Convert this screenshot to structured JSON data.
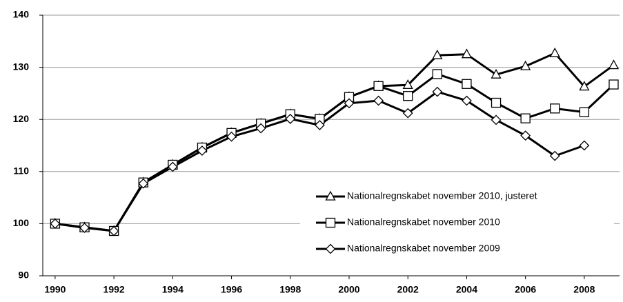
{
  "chart_data": {
    "type": "line",
    "x": [
      1990,
      1991,
      1992,
      1993,
      1994,
      1995,
      1996,
      1997,
      1998,
      1999,
      2000,
      2001,
      2002,
      2003,
      2004,
      2005,
      2006,
      2007,
      2008,
      2009
    ],
    "series": [
      {
        "name": "Nationalregnskabet november 2010, justeret",
        "color": "#000000",
        "marker": "triangle",
        "values": [
          100,
          99.3,
          98.6,
          107.9,
          111.3,
          114.6,
          117.4,
          119.2,
          121.0,
          120.1,
          124.3,
          126.4,
          126.6,
          132.3,
          132.5,
          128.6,
          130.2,
          132.7,
          126.3,
          130.4
        ]
      },
      {
        "name": "Nationalregnskabet november 2010",
        "color": "#000000",
        "marker": "square",
        "values": [
          100,
          99.3,
          98.6,
          107.9,
          111.3,
          114.6,
          117.4,
          119.2,
          121.0,
          120.1,
          124.3,
          126.4,
          124.5,
          128.7,
          126.8,
          123.2,
          120.2,
          122.1,
          121.4,
          126.7
        ]
      },
      {
        "name": "Nationalregnskabet november 2009",
        "color": "#000000",
        "marker": "diamond",
        "values": [
          100,
          99.2,
          98.6,
          107.7,
          110.9,
          114.0,
          116.7,
          118.3,
          120.1,
          118.9,
          123.1,
          123.6,
          121.2,
          125.3,
          123.6,
          119.9,
          116.9,
          113.0,
          115.0,
          null
        ]
      }
    ],
    "xlim": [
      1989.58,
      2009.2
    ],
    "xticks": [
      1990,
      1992,
      1994,
      1996,
      1998,
      2000,
      2002,
      2004,
      2006,
      2008
    ],
    "ylim": [
      90,
      140
    ],
    "yticks": [
      90,
      100,
      110,
      120,
      130,
      140
    ],
    "grid": true,
    "legend": "lower right"
  }
}
